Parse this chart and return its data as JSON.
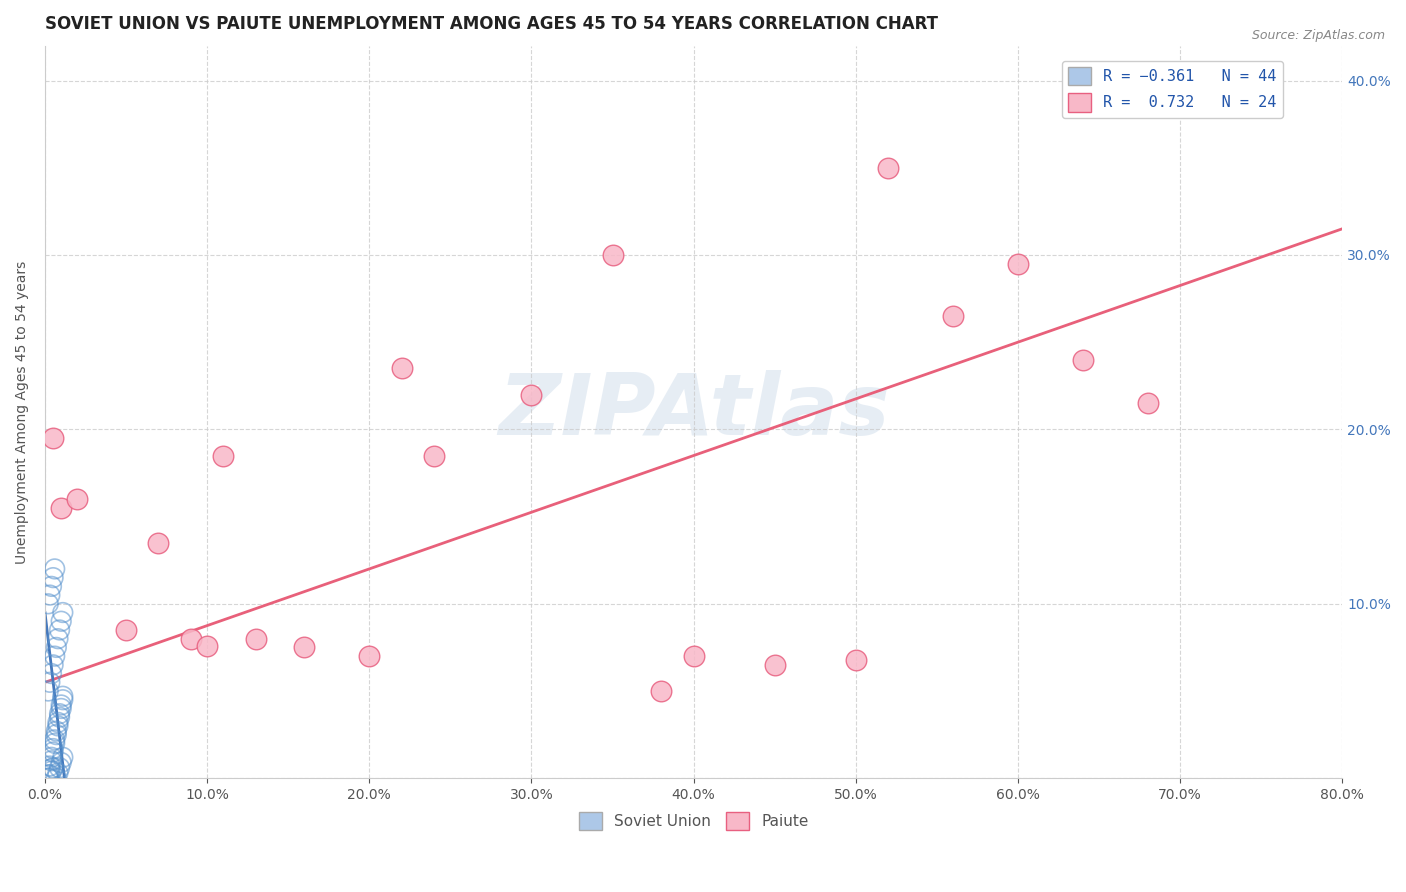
{
  "title": "SOVIET UNION VS PAIUTE UNEMPLOYMENT AMONG AGES 45 TO 54 YEARS CORRELATION CHART",
  "source": "Source: ZipAtlas.com",
  "ylabel": "Unemployment Among Ages 45 to 54 years",
  "watermark": "ZIPAtlas",
  "legend_label1": "R = −0.361   N = 44",
  "legend_label2": "R =  0.732   N = 24",
  "legend_bottom1": "Soviet Union",
  "legend_bottom2": "Paiute",
  "soviet_color": "#adc8e8",
  "soviet_edge_color": "#5590cc",
  "paiute_color": "#f8b8c8",
  "paiute_edge_color": "#e86080",
  "paiute_line_color": "#e8607a",
  "soviet_line_color": "#4477bb",
  "bg_color": "#ffffff",
  "grid_color": "#cccccc",
  "xlim": [
    0.0,
    0.8
  ],
  "ylim": [
    0.0,
    0.42
  ],
  "yticks": [
    0.0,
    0.1,
    0.2,
    0.3,
    0.4
  ],
  "xticks": [
    0.0,
    0.1,
    0.2,
    0.3,
    0.4,
    0.5,
    0.6,
    0.7,
    0.8
  ],
  "right_ytick_color": "#4477bb",
  "left_tick_color": "#777777",
  "soviet_x": [
    0.002,
    0.003,
    0.004,
    0.005,
    0.006,
    0.007,
    0.008,
    0.009,
    0.01,
    0.011,
    0.002,
    0.003,
    0.004,
    0.005,
    0.006,
    0.007,
    0.008,
    0.009,
    0.01,
    0.011,
    0.002,
    0.003,
    0.004,
    0.005,
    0.006,
    0.007,
    0.008,
    0.009,
    0.01,
    0.011,
    0.002,
    0.003,
    0.004,
    0.005,
    0.006,
    0.007,
    0.008,
    0.009,
    0.01,
    0.011,
    0.002,
    0.003,
    0.004,
    0.005
  ],
  "soviet_y": [
    0.0,
    0.005,
    0.01,
    0.015,
    0.02,
    0.025,
    0.03,
    0.035,
    0.04,
    0.045,
    0.002,
    0.007,
    0.012,
    0.017,
    0.022,
    0.027,
    0.032,
    0.037,
    0.042,
    0.047,
    0.05,
    0.055,
    0.06,
    0.065,
    0.07,
    0.075,
    0.08,
    0.085,
    0.09,
    0.095,
    0.1,
    0.105,
    0.11,
    0.115,
    0.12,
    0.0,
    0.003,
    0.006,
    0.009,
    0.012,
    0.0,
    0.002,
    0.004,
    0.006
  ],
  "paiute_x": [
    0.005,
    0.01,
    0.02,
    0.05,
    0.07,
    0.09,
    0.1,
    0.11,
    0.13,
    0.16,
    0.2,
    0.22,
    0.24,
    0.3,
    0.35,
    0.38,
    0.4,
    0.45,
    0.5,
    0.52,
    0.56,
    0.6,
    0.64,
    0.68
  ],
  "paiute_y": [
    0.195,
    0.155,
    0.16,
    0.085,
    0.135,
    0.08,
    0.076,
    0.185,
    0.08,
    0.075,
    0.07,
    0.235,
    0.185,
    0.22,
    0.3,
    0.05,
    0.07,
    0.065,
    0.068,
    0.35,
    0.265,
    0.295,
    0.24,
    0.215
  ],
  "paiute_trend_x": [
    0.0,
    0.8
  ],
  "paiute_trend_y": [
    0.055,
    0.315
  ],
  "soviet_trend_x": [
    0.0,
    0.012
  ],
  "soviet_trend_y": [
    0.095,
    0.0
  ],
  "title_fontsize": 12,
  "axis_label_fontsize": 10,
  "tick_fontsize": 10
}
